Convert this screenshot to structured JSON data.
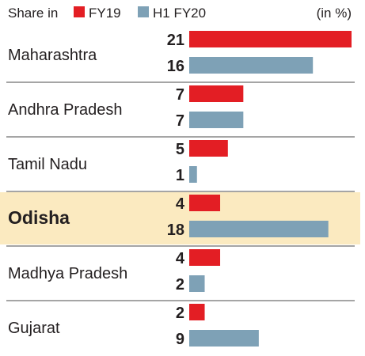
{
  "legend": {
    "prefix": "Share in",
    "unit": "(in %)"
  },
  "colors": {
    "fy19": "#e31e24",
    "h1fy20": "#7ea1b6",
    "highlight_bg": "#fbeac0",
    "separator": "#4b4b4b"
  },
  "chart_data": {
    "type": "bar",
    "orientation": "horizontal",
    "unit": "(in %)",
    "categories": [
      "Maharashtra",
      "Andhra Pradesh",
      "Tamil Nadu",
      "Odisha",
      "Madhya Pradesh",
      "Gujarat"
    ],
    "highlight": "Odisha",
    "series": [
      {
        "name": "FY19",
        "color": "#e31e24",
        "values": [
          21,
          7,
          5,
          4,
          4,
          2
        ]
      },
      {
        "name": "H1 FY20",
        "color": "#7ea1b6",
        "values": [
          16,
          7,
          1,
          18,
          2,
          9
        ]
      }
    ],
    "xlim": [
      0,
      21
    ],
    "grid": false,
    "legend_position": "top"
  }
}
